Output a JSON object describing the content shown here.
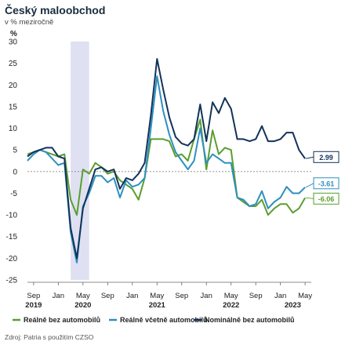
{
  "header": {
    "title": "Český maloobchod",
    "subtitle": "v % meziročně",
    "unit": "%"
  },
  "source": "Zdroj: Patria s použitím CZSO",
  "colors": {
    "realne_bez": "#5a9e2e",
    "realne_vcetne": "#2e8fc0",
    "nominalne_bez": "#13325a",
    "shade": "#dfe1f2"
  },
  "chart_data": {
    "type": "line",
    "title": "Český maloobchod",
    "subtitle": "v % meziročně",
    "ylabel": "%",
    "ylim": [
      -25,
      30
    ],
    "yticks": [
      -25,
      -20,
      -15,
      -10,
      -5,
      0,
      5,
      10,
      15,
      20,
      25,
      30
    ],
    "x_start": "2019-08",
    "x_end": "2023-06",
    "xticks": [
      {
        "label": "Sep",
        "date": "2019-09"
      },
      {
        "label": "Jan",
        "date": "2020-01"
      },
      {
        "label": "May",
        "date": "2020-05"
      },
      {
        "label": "Sep",
        "date": "2020-09"
      },
      {
        "label": "Jan",
        "date": "2021-01"
      },
      {
        "label": "May",
        "date": "2021-05"
      },
      {
        "label": "Sep",
        "date": "2021-09"
      },
      {
        "label": "Jan",
        "date": "2022-01"
      },
      {
        "label": "May",
        "date": "2022-05"
      },
      {
        "label": "Sep",
        "date": "2022-09"
      },
      {
        "label": "Jan",
        "date": "2023-01"
      },
      {
        "label": "May",
        "date": "2023-05"
      }
    ],
    "years": [
      {
        "label": "2019",
        "date": "2019-09"
      },
      {
        "label": "2020",
        "date": "2020-05"
      },
      {
        "label": "2021",
        "date": "2021-05"
      },
      {
        "label": "2022",
        "date": "2022-05"
      },
      {
        "label": "2023",
        "date": "2023-03"
      }
    ],
    "shaded_period": [
      "2020-03",
      "2020-06"
    ],
    "dates": [
      "2019-08",
      "2019-09",
      "2019-10",
      "2019-11",
      "2019-12",
      "2020-01",
      "2020-02",
      "2020-03",
      "2020-04",
      "2020-05",
      "2020-06",
      "2020-07",
      "2020-08",
      "2020-09",
      "2020-10",
      "2020-11",
      "2020-12",
      "2021-01",
      "2021-02",
      "2021-03",
      "2021-04",
      "2021-05",
      "2021-06",
      "2021-07",
      "2021-08",
      "2021-09",
      "2021-10",
      "2021-11",
      "2021-12",
      "2022-01",
      "2022-02",
      "2022-03",
      "2022-04",
      "2022-05",
      "2022-06",
      "2022-07",
      "2022-08",
      "2022-09",
      "2022-10",
      "2022-11",
      "2022-12",
      "2023-01",
      "2023-02",
      "2023-03",
      "2023-04",
      "2023-05"
    ],
    "series": [
      {
        "name": "Reálně bez automobilů",
        "color_key": "realne_bez",
        "end_label": "-6.06",
        "values": [
          4.0,
          4.5,
          5.0,
          4.5,
          4.0,
          3.5,
          4.0,
          -6.5,
          -10.0,
          0.5,
          -0.5,
          2.0,
          1.0,
          -0.5,
          0.0,
          -2.0,
          -3.0,
          -4.0,
          -6.5,
          -1.5,
          7.5,
          7.5,
          7.5,
          7.0,
          3.5,
          4.0,
          2.5,
          7.5,
          12.0,
          0.5,
          9.5,
          4.0,
          5.5,
          5.0,
          -6.0,
          -7.0,
          -8.0,
          -8.0,
          -6.5,
          -10.0,
          -8.5,
          -7.5,
          -7.5,
          -9.5,
          -8.5,
          -6.06
        ]
      },
      {
        "name": "Reálně včetně automobilů",
        "color_key": "realne_vcetne",
        "end_label": "-3.61",
        "values": [
          2.5,
          4.0,
          5.0,
          4.5,
          3.0,
          1.5,
          2.0,
          -14.0,
          -21.0,
          -8.0,
          -5.0,
          -1.0,
          -1.0,
          -2.5,
          -1.5,
          -6.0,
          -2.0,
          -3.5,
          -3.0,
          -1.5,
          10.0,
          22.0,
          14.0,
          8.5,
          4.5,
          2.5,
          0.5,
          2.5,
          10.0,
          2.0,
          4.0,
          3.0,
          2.0,
          2.0,
          -6.0,
          -6.5,
          -8.0,
          -7.5,
          -4.5,
          -8.5,
          -7.0,
          -6.0,
          -3.5,
          -5.0,
          -5.0,
          -3.61
        ]
      },
      {
        "name": "Nominálně bez automobilů",
        "color_key": "nominalne_bez",
        "end_label": "2.99",
        "values": [
          3.5,
          4.5,
          5.0,
          5.5,
          5.5,
          3.5,
          3.0,
          -13.0,
          -20.0,
          -8.5,
          -4.0,
          0.5,
          1.0,
          0.0,
          0.5,
          -4.0,
          -1.5,
          -2.0,
          -0.5,
          2.0,
          13.0,
          26.0,
          19.0,
          12.5,
          8.0,
          6.5,
          6.0,
          7.5,
          15.5,
          7.0,
          16.0,
          13.5,
          17.0,
          14.5,
          7.5,
          7.5,
          7.0,
          7.5,
          10.5,
          7.0,
          7.0,
          7.5,
          9.0,
          9.0,
          5.0,
          2.99
        ]
      }
    ],
    "legend_position": "bottom"
  }
}
